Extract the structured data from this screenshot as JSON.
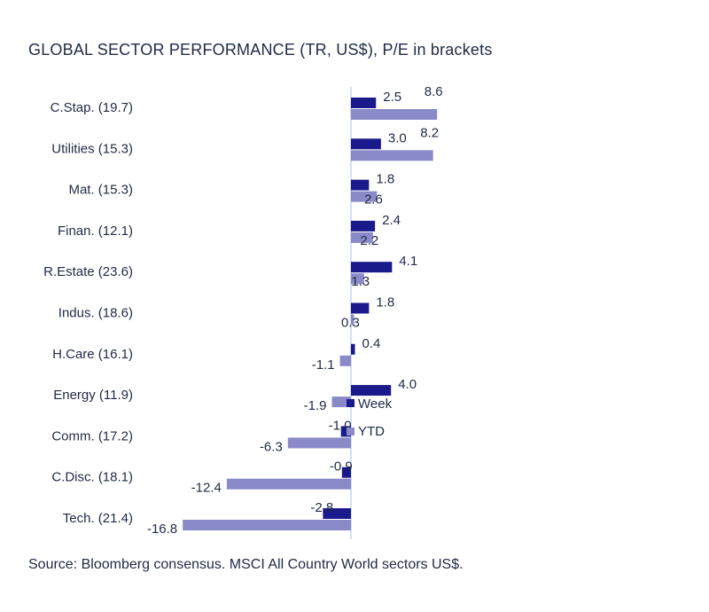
{
  "title": "GLOBAL SECTOR PERFORMANCE (TR, US$), P/E in brackets",
  "source": "Source: Bloomberg consensus. MSCI All Country World sectors US$.",
  "colors": {
    "week": "#1a1a8c",
    "ytd": "#8a8ac9",
    "axis": "#9fc5e8"
  },
  "chart_data": {
    "type": "bar",
    "orientation": "horizontal",
    "title": "GLOBAL SECTOR PERFORMANCE (TR, US$), P/E in brackets",
    "categories": [
      "C.Stap. (19.7)",
      "Utilities (15.3)",
      "Mat. (15.3)",
      "Finan. (12.1)",
      "R.Estate (23.6)",
      "Indus. (18.6)",
      "H.Care (16.1)",
      "Energy (11.9)",
      "Comm. (17.2)",
      "C.Disc. (18.1)",
      "Tech. (21.4)"
    ],
    "series": [
      {
        "name": "Week",
        "values": [
          2.5,
          3.0,
          1.8,
          2.4,
          4.1,
          1.8,
          0.4,
          4.0,
          -1.0,
          -0.9,
          -2.8
        ]
      },
      {
        "name": "YTD",
        "values": [
          8.6,
          8.2,
          2.6,
          2.2,
          1.3,
          0.3,
          -1.1,
          -1.9,
          -6.3,
          -12.4,
          -16.8
        ]
      }
    ],
    "week_labels": [
      "2.5",
      "3.0",
      "1.8",
      "2.4",
      "4.1",
      "1.8",
      "0.4",
      "4.0",
      "-1.0",
      "-0.9",
      "-2.8"
    ],
    "ytd_labels": [
      "8.6",
      "8.2",
      "2.6",
      "2.2",
      "1.3",
      "0.3",
      "-1.1",
      "-1.9",
      "-6.3",
      "-12.4",
      "-16.8"
    ],
    "xlim": [
      -17.5,
      9
    ],
    "legend": [
      "Week",
      "YTD"
    ],
    "legend_position": "inside-center",
    "grid": false
  }
}
